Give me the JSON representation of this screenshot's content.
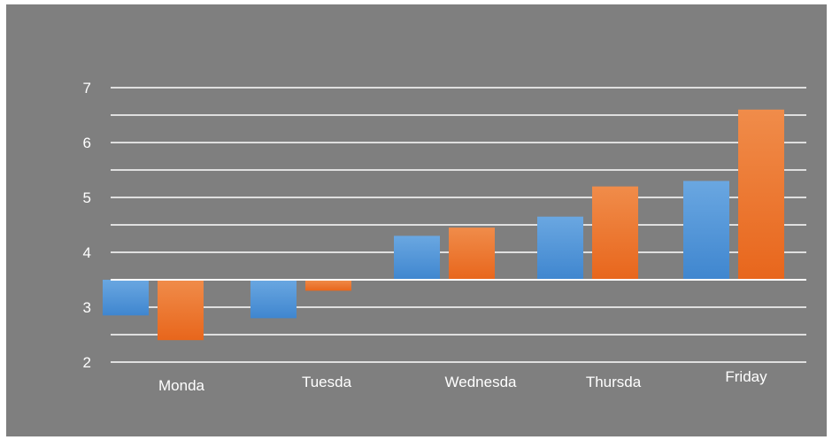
{
  "chart_data": {
    "type": "bar",
    "title": "",
    "xlabel": "",
    "ylabel": "",
    "categories": [
      "Monda",
      "Tuesda",
      "Wednesda",
      "Thursda",
      "Friday"
    ],
    "series": [
      {
        "values": [
          2.85,
          2.8,
          4.3,
          4.65,
          5.3
        ]
      },
      {
        "values": [
          2.4,
          3.3,
          4.45,
          5.2,
          6.6
        ]
      }
    ],
    "y_ticks": [
      "2",
      "3",
      "4",
      "5",
      "6",
      "7"
    ],
    "ylim": [
      2,
      7
    ],
    "baseline": 3.5,
    "grid": true,
    "minor_grid_step": 0.5,
    "colors": {
      "background": "#7f7f7f",
      "series_1": "#4f93d6",
      "series_2": "#ed7424",
      "gridlines": "#ffffff",
      "text": "#ffffff"
    }
  }
}
